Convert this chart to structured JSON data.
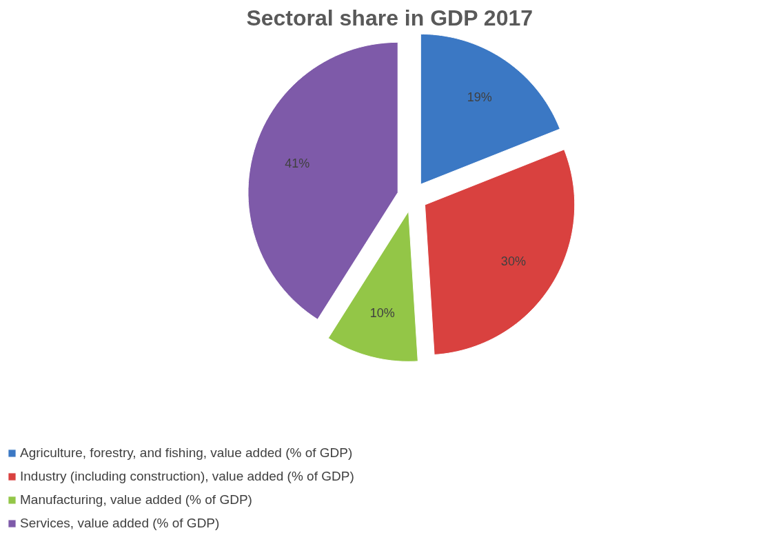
{
  "chart_data": {
    "type": "pie",
    "title": "Sectoral share in GDP 2017",
    "categories": [
      "Agriculture, forestry, and fishing, value added (% of GDP)",
      "Industry (including construction), value added (% of GDP)",
      "Manufacturing, value added (% of GDP)",
      "Services, value added (% of GDP)"
    ],
    "values": [
      19,
      30,
      10,
      41
    ],
    "colors": [
      "#3b78c4",
      "#d9413f",
      "#93c647",
      "#7e5aa9"
    ],
    "value_labels": [
      "19%",
      "30%",
      "10%",
      "41%"
    ],
    "legend": "bottom"
  }
}
